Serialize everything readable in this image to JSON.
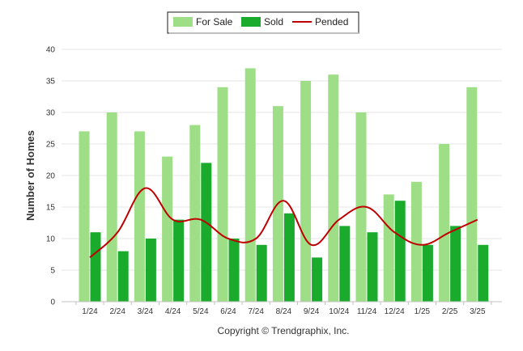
{
  "chart_data": {
    "type": "bar",
    "categories": [
      "1/24",
      "2/24",
      "3/24",
      "4/24",
      "5/24",
      "6/24",
      "7/24",
      "8/24",
      "9/24",
      "10/24",
      "11/24",
      "12/24",
      "1/25",
      "2/25",
      "3/25"
    ],
    "series": [
      {
        "name": "For Sale",
        "type": "bar",
        "color": "#9ede86",
        "values": [
          27,
          30,
          27,
          23,
          28,
          34,
          37,
          31,
          35,
          36,
          30,
          17,
          19,
          25,
          34
        ]
      },
      {
        "name": "Sold",
        "type": "bar",
        "color": "#1aab2d",
        "values": [
          11,
          8,
          10,
          13,
          22,
          10,
          9,
          14,
          7,
          12,
          11,
          16,
          9,
          12,
          9
        ]
      },
      {
        "name": "Pended",
        "type": "line",
        "color": "#c00000",
        "values": [
          7,
          11,
          18,
          13,
          13,
          10,
          10,
          16,
          9,
          13,
          15,
          11,
          9,
          11,
          13
        ]
      }
    ],
    "ylabel": "Number of Homes",
    "ylim": [
      0,
      40
    ],
    "yticks": [
      0,
      5,
      10,
      15,
      20,
      25,
      30,
      35,
      40
    ],
    "grid": true,
    "legend_position": "top-center"
  },
  "credit": "Copyright © Trendgraphix, Inc."
}
